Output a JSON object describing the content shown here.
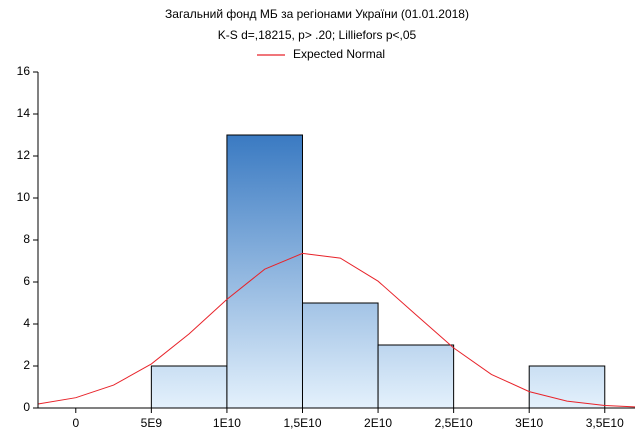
{
  "chart_data": {
    "type": "histogram",
    "title": "Загальний фонд МБ за регіонами України (01.01.2018)",
    "subtitle": "K-S d=,18215, p> .20; Lilliefors p<,05",
    "bins": [
      5000000000,
      10000000000,
      15000000000,
      20000000000,
      25000000000,
      30000000000,
      35000000000
    ],
    "counts": [
      2,
      13,
      5,
      3,
      0,
      2
    ],
    "color": "#3a7ac2",
    "curve": {
      "name": "Expected Normal",
      "color": "#e8232a",
      "x": [
        -2500000000,
        0,
        2500000000,
        5000000000,
        7500000000,
        10000000000,
        12500000000,
        15000000000,
        17500000000,
        20000000000,
        22500000000,
        25000000000,
        27500000000,
        30000000000,
        32500000000,
        35000000000,
        37000000000
      ],
      "values": [
        0.19,
        0.49,
        1.09,
        2.1,
        3.53,
        5.17,
        6.61,
        7.36,
        7.14,
        6.04,
        4.45,
        2.86,
        1.6,
        0.78,
        0.33,
        0.12,
        0.05
      ]
    },
    "xlim": [
      -2500000000,
      37000000000
    ],
    "xticks": [
      0,
      {
        "value": 5000000000,
        "label": "5E9"
      },
      {
        "value": 10000000000,
        "label": "1E10"
      },
      {
        "value": 15000000000,
        "label": "1,5E10"
      },
      {
        "value": 20000000000,
        "label": "2E10"
      },
      {
        "value": 25000000000,
        "label": "2,5E10"
      },
      {
        "value": 30000000000,
        "label": "3E10"
      },
      {
        "value": 35000000000,
        "label": "3,5E10"
      }
    ],
    "ylim": [
      0,
      16
    ],
    "yticks": [
      0,
      2,
      4,
      6,
      8,
      10,
      12,
      14,
      16
    ]
  }
}
